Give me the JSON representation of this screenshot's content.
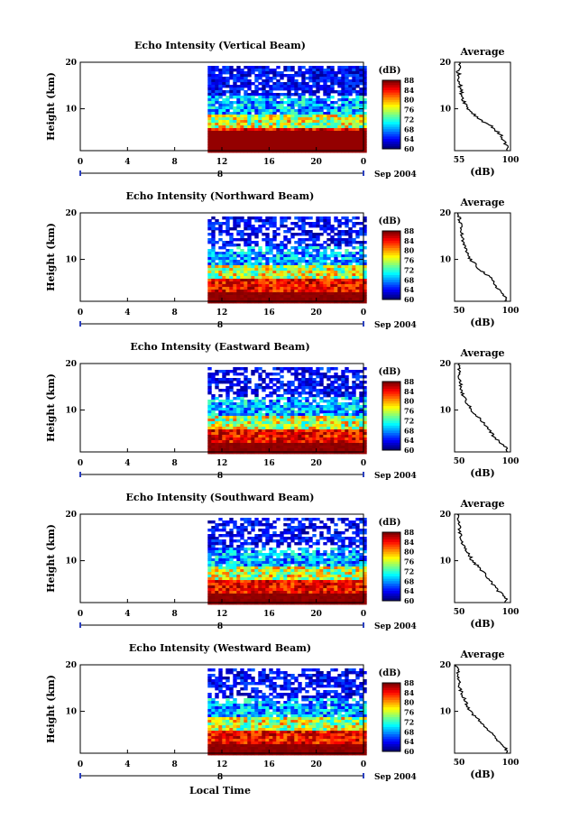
{
  "figure": {
    "xlabel": "Local Time",
    "date_label": "Sep 2004",
    "colorbar_unit": "(dB)",
    "colorbar_ticks": [
      "88",
      "84",
      "80",
      "76",
      "72",
      "68",
      "64",
      "60"
    ],
    "avg_title": "Average",
    "avg_xlabel": "(dB)",
    "height_label": "Height (km)"
  },
  "chart_data": [
    {
      "type": "heatmap",
      "title": "Echo Intensity (Vertical Beam)",
      "xlabel": "Local Time",
      "ylabel": "Height (km)",
      "x_ticks": [
        "0",
        "4",
        "8",
        "12",
        "16",
        "20",
        "0"
      ],
      "x_day_label": "8",
      "xlim": [
        0,
        24
      ],
      "y_ticks": [
        "20",
        "10"
      ],
      "ylim": [
        1,
        20
      ],
      "data_start_hour": 10.8,
      "colorbar": {
        "label": "(dB)",
        "range": [
          60,
          88
        ],
        "ticks": [
          88,
          84,
          80,
          76,
          72,
          68,
          64,
          60
        ]
      },
      "average": {
        "xlim": [
          55,
          100
        ],
        "x_ticks": [
          "55",
          "100"
        ],
        "xlabel": "(dB)",
        "y_ticks": [
          "20",
          "10"
        ],
        "heights_km": [
          2,
          4,
          6,
          8,
          10,
          12,
          14,
          16,
          18,
          20
        ],
        "values_db": [
          97,
          93,
          86,
          74,
          66,
          62,
          60,
          59,
          58,
          60
        ]
      }
    },
    {
      "type": "heatmap",
      "title": "Echo Intensity (Northward Beam)",
      "xlabel": "Local Time",
      "ylabel": "Height (km)",
      "x_ticks": [
        "0",
        "4",
        "8",
        "12",
        "16",
        "20",
        "0"
      ],
      "x_day_label": "8",
      "xlim": [
        0,
        24
      ],
      "y_ticks": [
        "20",
        "10"
      ],
      "ylim": [
        1,
        20
      ],
      "data_start_hour": 10.8,
      "colorbar": {
        "label": "(dB)",
        "range": [
          60,
          88
        ],
        "ticks": [
          88,
          84,
          80,
          76,
          72,
          68,
          64,
          60
        ]
      },
      "average": {
        "xlim": [
          50,
          100
        ],
        "x_ticks": [
          "50",
          "100"
        ],
        "xlabel": "(dB)",
        "y_ticks": [
          "20",
          "10"
        ],
        "heights_km": [
          2,
          4,
          6,
          8,
          10,
          12,
          14,
          16,
          18,
          20
        ],
        "values_db": [
          95,
          88,
          82,
          72,
          64,
          60,
          57,
          56,
          55,
          53
        ]
      }
    },
    {
      "type": "heatmap",
      "title": "Echo Intensity (Eastward Beam)",
      "xlabel": "Local Time",
      "ylabel": "Height (km)",
      "x_ticks": [
        "0",
        "4",
        "8",
        "12",
        "16",
        "20",
        "0"
      ],
      "x_day_label": "8",
      "xlim": [
        0,
        24
      ],
      "y_ticks": [
        "20",
        "10"
      ],
      "ylim": [
        1,
        20
      ],
      "data_start_hour": 10.8,
      "colorbar": {
        "label": "(dB)",
        "range": [
          60,
          88
        ],
        "ticks": [
          88,
          84,
          80,
          76,
          72,
          68,
          64,
          60
        ]
      },
      "average": {
        "xlim": [
          50,
          100
        ],
        "x_ticks": [
          "50",
          "100"
        ],
        "xlabel": "(dB)",
        "y_ticks": [
          "20",
          "10"
        ],
        "heights_km": [
          2,
          4,
          6,
          8,
          10,
          12,
          14,
          16,
          18,
          20
        ],
        "values_db": [
          96,
          86,
          80,
          73,
          65,
          60,
          56,
          55,
          54,
          53
        ]
      }
    },
    {
      "type": "heatmap",
      "title": "Echo Intensity (Southward Beam)",
      "xlabel": "Local Time",
      "ylabel": "Height (km)",
      "x_ticks": [
        "0",
        "4",
        "8",
        "12",
        "16",
        "20",
        "0"
      ],
      "x_day_label": "8",
      "xlim": [
        0,
        24
      ],
      "y_ticks": [
        "20",
        "10"
      ],
      "ylim": [
        1,
        20
      ],
      "data_start_hour": 10.8,
      "colorbar": {
        "label": "(dB)",
        "range": [
          60,
          88
        ],
        "ticks": [
          88,
          84,
          80,
          76,
          72,
          68,
          64,
          60
        ]
      },
      "average": {
        "xlim": [
          50,
          100
        ],
        "x_ticks": [
          "50",
          "100"
        ],
        "xlabel": "(dB)",
        "y_ticks": [
          "20",
          "10"
        ],
        "heights_km": [
          2,
          4,
          6,
          8,
          10,
          12,
          14,
          16,
          18,
          20
        ],
        "values_db": [
          96,
          87,
          81,
          74,
          66,
          61,
          57,
          55,
          54,
          53
        ]
      }
    },
    {
      "type": "heatmap",
      "title": "Echo Intensity (Westward Beam)",
      "xlabel": "Local Time",
      "ylabel": "Height (km)",
      "x_ticks": [
        "0",
        "4",
        "8",
        "12",
        "16",
        "20",
        "0"
      ],
      "x_day_label": "8",
      "xlim": [
        0,
        24
      ],
      "y_ticks": [
        "20",
        "10"
      ],
      "ylim": [
        1,
        20
      ],
      "data_start_hour": 10.8,
      "colorbar": {
        "label": "(dB)",
        "range": [
          60,
          88
        ],
        "ticks": [
          88,
          84,
          80,
          76,
          72,
          68,
          64,
          60
        ]
      },
      "average": {
        "xlim": [
          50,
          100
        ],
        "x_ticks": [
          "50",
          "100"
        ],
        "xlabel": "(dB)",
        "y_ticks": [
          "20",
          "10"
        ],
        "heights_km": [
          2,
          4,
          6,
          8,
          10,
          12,
          14,
          16,
          18,
          20
        ],
        "values_db": [
          96,
          88,
          80,
          72,
          64,
          60,
          56,
          54,
          53,
          52
        ]
      }
    }
  ]
}
